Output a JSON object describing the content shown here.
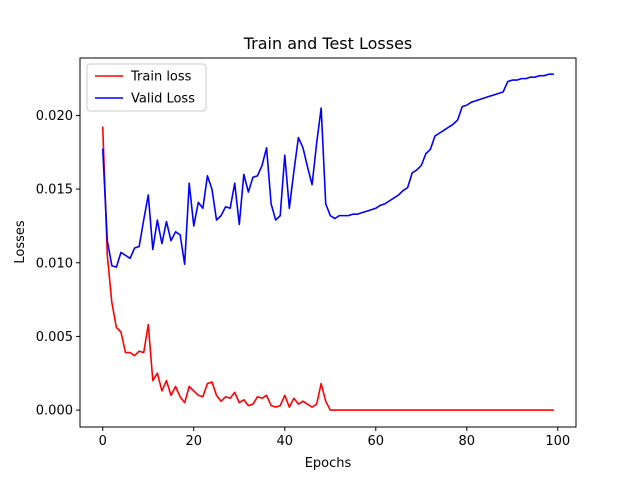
{
  "chart_data": {
    "type": "line",
    "title": "Train and Test Losses",
    "xlabel": "Epochs",
    "ylabel": "Losses",
    "xlim": [
      -5,
      104
    ],
    "ylim": [
      -0.00115,
      0.0239
    ],
    "x_ticks": [
      0,
      20,
      40,
      60,
      80,
      100
    ],
    "y_ticks": [
      0.0,
      0.005,
      0.01,
      0.015,
      0.02
    ],
    "y_tick_labels": [
      "0.000",
      "0.005",
      "0.010",
      "0.015",
      "0.020"
    ],
    "grid": false,
    "legend_position": "upper-left",
    "series": [
      {
        "name": "Train loss",
        "color": "#ff0000",
        "x": [
          0,
          1,
          2,
          3,
          4,
          5,
          6,
          7,
          8,
          9,
          10,
          11,
          12,
          13,
          14,
          15,
          16,
          17,
          18,
          19,
          20,
          21,
          22,
          23,
          24,
          25,
          26,
          27,
          28,
          29,
          30,
          31,
          32,
          33,
          34,
          35,
          36,
          37,
          38,
          39,
          40,
          41,
          42,
          43,
          44,
          45,
          46,
          47,
          48,
          49,
          50,
          51,
          52,
          53,
          54,
          55,
          56,
          57,
          58,
          59,
          60,
          61,
          62,
          63,
          64,
          65,
          66,
          67,
          68,
          69,
          70,
          71,
          72,
          73,
          74,
          75,
          76,
          77,
          78,
          79,
          80,
          81,
          82,
          83,
          84,
          85,
          86,
          87,
          88,
          89,
          90,
          91,
          92,
          93,
          94,
          95,
          96,
          97,
          98,
          99
        ],
        "values": [
          0.0192,
          0.0105,
          0.0073,
          0.0056,
          0.0053,
          0.0039,
          0.0039,
          0.0037,
          0.004,
          0.0039,
          0.0058,
          0.002,
          0.0025,
          0.0013,
          0.002,
          0.001,
          0.0016,
          0.0009,
          0.0005,
          0.0016,
          0.0013,
          0.001,
          0.0009,
          0.0018,
          0.0019,
          0.001,
          0.0006,
          0.0009,
          0.0008,
          0.0012,
          0.0005,
          0.0007,
          0.0003,
          0.0004,
          0.0009,
          0.0008,
          0.001,
          0.0003,
          0.0002,
          0.0003,
          0.001,
          0.0002,
          0.0008,
          0.0004,
          0.0006,
          0.0004,
          0.0002,
          0.0004,
          0.0018,
          0.0006,
          0.0,
          0.0,
          0.0,
          0.0,
          0.0,
          0.0,
          0.0,
          0.0,
          0.0,
          0.0,
          0.0,
          0.0,
          0.0,
          0.0,
          0.0,
          0.0,
          0.0,
          0.0,
          0.0,
          0.0,
          0.0,
          0.0,
          0.0,
          0.0,
          0.0,
          0.0,
          0.0,
          0.0,
          0.0,
          0.0,
          0.0,
          0.0,
          0.0,
          0.0,
          0.0,
          0.0,
          0.0,
          0.0,
          0.0,
          0.0,
          0.0,
          0.0,
          0.0,
          0.0,
          0.0,
          0.0,
          0.0,
          0.0,
          0.0,
          0.0
        ]
      },
      {
        "name": "Valid Loss",
        "color": "#0000ff",
        "x": [
          0,
          1,
          2,
          3,
          4,
          5,
          6,
          7,
          8,
          9,
          10,
          11,
          12,
          13,
          14,
          15,
          16,
          17,
          18,
          19,
          20,
          21,
          22,
          23,
          24,
          25,
          26,
          27,
          28,
          29,
          30,
          31,
          32,
          33,
          34,
          35,
          36,
          37,
          38,
          39,
          40,
          41,
          42,
          43,
          44,
          45,
          46,
          47,
          48,
          49,
          50,
          51,
          52,
          53,
          54,
          55,
          56,
          57,
          58,
          59,
          60,
          61,
          62,
          63,
          64,
          65,
          66,
          67,
          68,
          69,
          70,
          71,
          72,
          73,
          74,
          75,
          76,
          77,
          78,
          79,
          80,
          81,
          82,
          83,
          84,
          85,
          86,
          87,
          88,
          89,
          90,
          91,
          92,
          93,
          94,
          95,
          96,
          97,
          98,
          99
        ],
        "values": [
          0.0177,
          0.0115,
          0.0098,
          0.0097,
          0.0107,
          0.0105,
          0.0103,
          0.011,
          0.0111,
          0.0129,
          0.0146,
          0.0109,
          0.0129,
          0.0113,
          0.0128,
          0.0115,
          0.0121,
          0.0119,
          0.0099,
          0.0154,
          0.0125,
          0.0141,
          0.0137,
          0.0159,
          0.015,
          0.0129,
          0.0132,
          0.0138,
          0.0137,
          0.0154,
          0.0126,
          0.016,
          0.0148,
          0.0158,
          0.0159,
          0.0166,
          0.0178,
          0.014,
          0.0129,
          0.0132,
          0.0173,
          0.0137,
          0.0162,
          0.0185,
          0.0178,
          0.0165,
          0.0153,
          0.0181,
          0.0205,
          0.014,
          0.0132,
          0.013,
          0.0132,
          0.0132,
          0.0132,
          0.0133,
          0.0133,
          0.0134,
          0.0135,
          0.0136,
          0.0137,
          0.0139,
          0.014,
          0.0142,
          0.0144,
          0.0146,
          0.0149,
          0.0151,
          0.0161,
          0.0163,
          0.0166,
          0.0174,
          0.0177,
          0.0186,
          0.0188,
          0.019,
          0.0192,
          0.0194,
          0.0197,
          0.0206,
          0.0207,
          0.0209,
          0.021,
          0.0211,
          0.0212,
          0.0213,
          0.0214,
          0.0215,
          0.0216,
          0.0223,
          0.0224,
          0.0224,
          0.0225,
          0.0225,
          0.0226,
          0.0226,
          0.0227,
          0.0227,
          0.0228,
          0.0228
        ]
      }
    ]
  }
}
